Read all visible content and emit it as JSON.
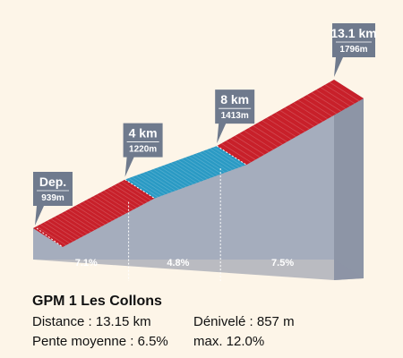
{
  "chart_data": {
    "type": "area",
    "title": "GPM 1 Les Collons",
    "x_unit": "km",
    "y_unit": "m",
    "points": [
      {
        "km": 0,
        "alt": 939
      },
      {
        "km": 4,
        "alt": 1220
      },
      {
        "km": 8,
        "alt": 1413
      },
      {
        "km": 13.1,
        "alt": 1796
      }
    ],
    "segments": [
      {
        "from_km": 0,
        "to_km": 4,
        "gradient_label": "7.1%",
        "color": "#c8202a"
      },
      {
        "from_km": 4,
        "to_km": 8,
        "gradient_label": "4.8%",
        "color": "#2a9ac4"
      },
      {
        "from_km": 8,
        "to_km": 13.1,
        "gradient_label": "7.5%",
        "color": "#c8202a"
      }
    ],
    "markers": [
      {
        "distance": "Dep.",
        "altitude": "939m"
      },
      {
        "distance": "4 km",
        "altitude": "1220m"
      },
      {
        "distance": "8 km",
        "altitude": "1413m"
      },
      {
        "distance": "13.1 km",
        "altitude": "1796m"
      }
    ]
  },
  "info": {
    "title": "GPM 1 Les Collons",
    "distance": "Distance : 13.15 km",
    "elevation_gain": "Dénivelé : 857 m",
    "avg_gradient": "Pente moyenne : 6.5%",
    "max_gradient": "max. 12.0%"
  },
  "colors": {
    "wall_front": "#a5adbd",
    "wall_side": "#8d95a6",
    "label_box": "#6f7a8d",
    "red": "#c8202a",
    "blue": "#2a9ac4"
  }
}
